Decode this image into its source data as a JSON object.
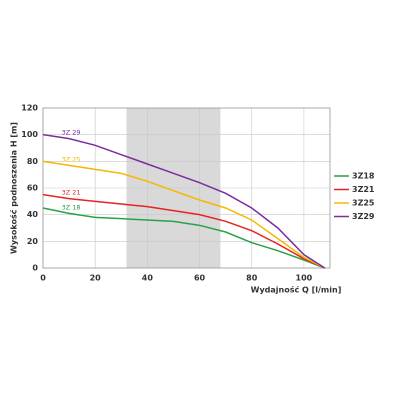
{
  "chart_data": {
    "type": "line",
    "x_label": "Wydajność Q [l/min]",
    "y_label": "Wysokość podnoszenia H [m]",
    "x": [
      0,
      10,
      20,
      30,
      40,
      50,
      60,
      70,
      80,
      90,
      100,
      108
    ],
    "series": [
      {
        "name": "3Z18",
        "label": "3Z 18",
        "color": "#2aa04a",
        "values": [
          45,
          41,
          38,
          37,
          36,
          35,
          32,
          27,
          19,
          13,
          6,
          0
        ]
      },
      {
        "name": "3Z21",
        "label": "3Z 21",
        "color": "#e52421",
        "values": [
          55,
          52,
          50,
          48,
          46,
          43,
          40,
          35,
          28,
          18,
          7,
          0
        ]
      },
      {
        "name": "3Z25",
        "label": "3Z 25",
        "color": "#f5b800",
        "values": [
          80,
          77,
          74,
          71,
          65,
          58,
          51,
          45,
          36,
          22,
          8,
          0
        ]
      },
      {
        "name": "3Z29",
        "label": "3Z 29",
        "color": "#7b2d9e",
        "values": [
          100,
          97,
          92,
          85,
          78,
          71,
          64,
          56,
          45,
          30,
          10,
          0
        ]
      }
    ],
    "shaded_range": [
      32,
      68
    ],
    "xlim": [
      0,
      110
    ],
    "ylim": [
      0,
      120
    ],
    "xticks": [
      0,
      20,
      40,
      60,
      80,
      100
    ],
    "yticks": [
      0,
      20,
      40,
      60,
      80,
      100,
      120
    ],
    "grid": true,
    "legend": "right"
  }
}
